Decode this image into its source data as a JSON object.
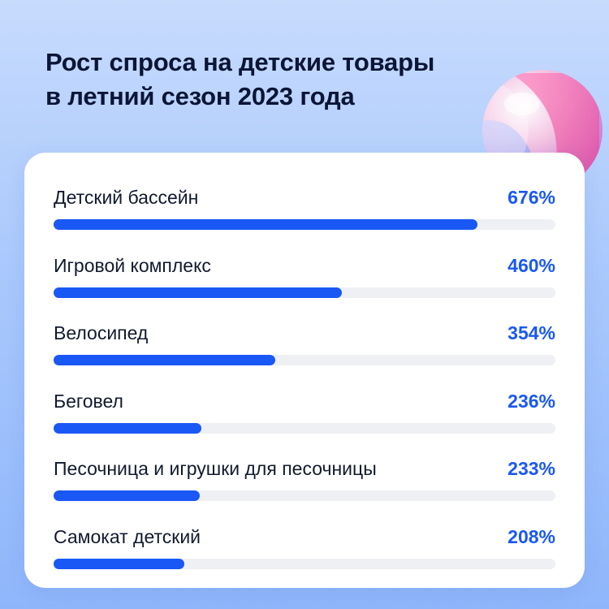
{
  "title": {
    "line1": "Рост спроса на детские товары",
    "line2": "в летний сезон 2023 года"
  },
  "colors": {
    "accent": "#1a58f5",
    "track": "#eef0f4",
    "title": "#0b1536"
  },
  "chart_data": {
    "type": "bar",
    "orientation": "horizontal",
    "title": "Рост спроса на детские товары в летний сезон 2023 года",
    "categories": [
      "Детский бассейн",
      "Игровой комплекс",
      "Велосипед",
      "Беговел",
      "Песочница и игрушки для песочницы",
      "Самокат детский"
    ],
    "values": [
      676,
      460,
      354,
      236,
      233,
      208
    ],
    "value_labels": [
      "676%",
      "460%",
      "354%",
      "236%",
      "233%",
      "208%"
    ],
    "unit": "%",
    "xlim": [
      0,
      800
    ]
  }
}
